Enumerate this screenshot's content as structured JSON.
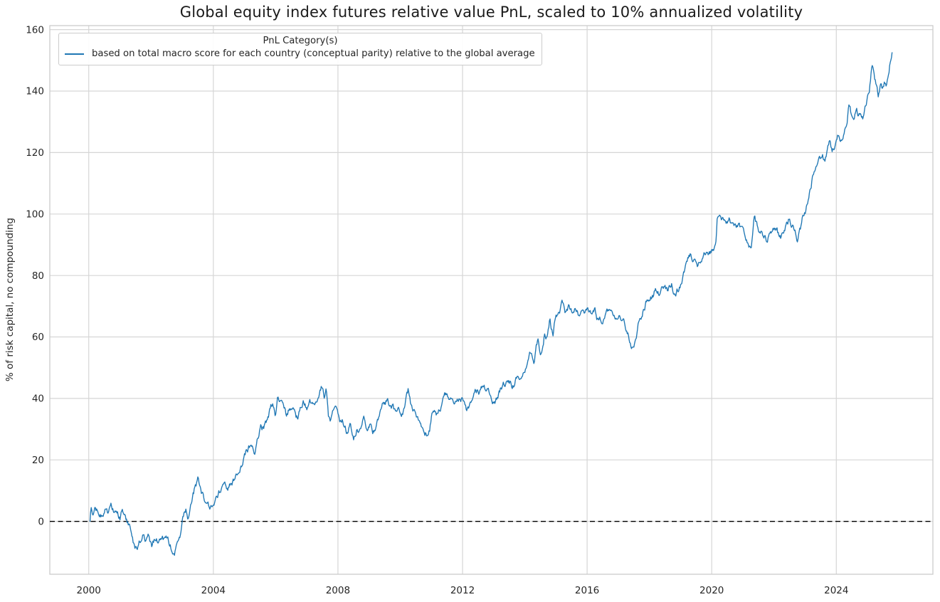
{
  "chart_data": {
    "type": "line",
    "title": "Global equity index futures relative value PnL, scaled to 10% annualized volatility",
    "xlabel": "",
    "ylabel": "% of risk capital, no compounding",
    "xlim": [
      1998.75,
      2027.1
    ],
    "ylim": [
      -17.2,
      161.3
    ],
    "x_ticks": [
      2000,
      2004,
      2008,
      2012,
      2016,
      2020,
      2024
    ],
    "y_ticks": [
      0,
      20,
      40,
      60,
      80,
      100,
      120,
      140,
      160
    ],
    "grid": true,
    "grid_color": "#d6d6d6",
    "axes_edge_color": "#cbcbcb",
    "zero_line": {
      "y": 0,
      "style": "dashed",
      "color": "#000000"
    },
    "legend": {
      "title": "PnL Category(s)",
      "position": "upper-left-inside",
      "entries": [
        {
          "label": "based on total macro score for each country (conceptual parity) relative to the global average",
          "color": "#1f77b4"
        }
      ]
    },
    "noise": {
      "seed": 7,
      "amplitude": 1.0,
      "persistence": 0.85,
      "clamp": 2.3,
      "step_years": 0.01923
    },
    "series": [
      {
        "name": "based on total macro score for each country (conceptual parity) relative to the global average",
        "color": "#1f77b4",
        "line_width": 1.35,
        "points": [
          [
            2000.04,
            0.0
          ],
          [
            2000.07,
            4.3
          ],
          [
            2000.13,
            2.6
          ],
          [
            2000.2,
            3.6
          ],
          [
            2000.28,
            3.1
          ],
          [
            2000.36,
            3.9
          ],
          [
            2000.45,
            2.9
          ],
          [
            2000.54,
            3.8
          ],
          [
            2000.63,
            3.2
          ],
          [
            2000.72,
            3.9
          ],
          [
            2000.82,
            3.4
          ],
          [
            2000.9,
            2.4
          ],
          [
            2001.0,
            0.6
          ],
          [
            2001.08,
            2.6
          ],
          [
            2001.16,
            1.4
          ],
          [
            2001.3,
            -1.8
          ],
          [
            2001.42,
            -6.8
          ],
          [
            2001.54,
            -8.6
          ],
          [
            2001.64,
            -6.0
          ],
          [
            2001.74,
            -4.6
          ],
          [
            2001.84,
            -6.9
          ],
          [
            2001.94,
            -5.4
          ],
          [
            2002.04,
            -7.8
          ],
          [
            2002.14,
            -5.8
          ],
          [
            2002.24,
            -7.2
          ],
          [
            2002.34,
            -4.9
          ],
          [
            2002.44,
            -6.3
          ],
          [
            2002.54,
            -5.3
          ],
          [
            2002.64,
            -7.6
          ],
          [
            2002.76,
            -9.2
          ],
          [
            2002.86,
            -6.6
          ],
          [
            2002.96,
            -3.9
          ],
          [
            2003.04,
            0.3
          ],
          [
            2003.12,
            3.4
          ],
          [
            2003.2,
            1.1
          ],
          [
            2003.3,
            5.4
          ],
          [
            2003.42,
            11.0
          ],
          [
            2003.5,
            12.8
          ],
          [
            2003.58,
            9.8
          ],
          [
            2003.68,
            6.9
          ],
          [
            2003.8,
            4.6
          ],
          [
            2003.92,
            3.4
          ],
          [
            2004.02,
            2.9
          ],
          [
            2004.1,
            6.4
          ],
          [
            2004.2,
            9.0
          ],
          [
            2004.33,
            10.8
          ],
          [
            2004.45,
            9.9
          ],
          [
            2004.56,
            11.9
          ],
          [
            2004.68,
            13.4
          ],
          [
            2004.78,
            15.0
          ],
          [
            2004.9,
            17.4
          ],
          [
            2005.0,
            20.8
          ],
          [
            2005.05,
            22.0
          ],
          [
            2005.15,
            23.5
          ],
          [
            2005.25,
            25.2
          ],
          [
            2005.35,
            23.8
          ],
          [
            2005.45,
            27.0
          ],
          [
            2005.53,
            31.5
          ],
          [
            2005.62,
            30.0
          ],
          [
            2005.72,
            33.0
          ],
          [
            2005.8,
            35.4
          ],
          [
            2005.9,
            37.7
          ],
          [
            2005.98,
            34.2
          ],
          [
            2006.07,
            39.6
          ],
          [
            2006.15,
            37.0
          ],
          [
            2006.25,
            38.5
          ],
          [
            2006.35,
            34.8
          ],
          [
            2006.45,
            37.5
          ],
          [
            2006.55,
            36.0
          ],
          [
            2006.68,
            33.6
          ],
          [
            2006.8,
            36.5
          ],
          [
            2006.9,
            38.0
          ],
          [
            2007.0,
            37.0
          ],
          [
            2007.1,
            39.5
          ],
          [
            2007.22,
            38.5
          ],
          [
            2007.32,
            41.0
          ],
          [
            2007.42,
            43.5
          ],
          [
            2007.5,
            45.0
          ],
          [
            2007.56,
            42.3
          ],
          [
            2007.63,
            43.8
          ],
          [
            2007.7,
            35.0
          ],
          [
            2007.78,
            33.8
          ],
          [
            2007.88,
            36.3
          ],
          [
            2007.96,
            34.8
          ],
          [
            2008.06,
            31.8
          ],
          [
            2008.16,
            33.0
          ],
          [
            2008.28,
            29.8
          ],
          [
            2008.38,
            31.3
          ],
          [
            2008.5,
            27.4
          ],
          [
            2008.6,
            30.3
          ],
          [
            2008.72,
            28.8
          ],
          [
            2008.82,
            32.3
          ],
          [
            2008.92,
            30.3
          ],
          [
            2009.02,
            31.8
          ],
          [
            2009.12,
            29.8
          ],
          [
            2009.22,
            31.3
          ],
          [
            2009.32,
            33.4
          ],
          [
            2009.45,
            37.4
          ],
          [
            2009.55,
            39.2
          ],
          [
            2009.65,
            37.8
          ],
          [
            2009.75,
            36.8
          ],
          [
            2009.85,
            34.2
          ],
          [
            2009.95,
            35.4
          ],
          [
            2010.05,
            35.9
          ],
          [
            2010.15,
            37.2
          ],
          [
            2010.25,
            41.8
          ],
          [
            2010.33,
            37.4
          ],
          [
            2010.42,
            34.6
          ],
          [
            2010.52,
            32.8
          ],
          [
            2010.62,
            31.4
          ],
          [
            2010.72,
            30.4
          ],
          [
            2010.84,
            29.6
          ],
          [
            2010.94,
            31.0
          ],
          [
            2011.04,
            36.3
          ],
          [
            2011.12,
            37.7
          ],
          [
            2011.2,
            35.4
          ],
          [
            2011.32,
            38.4
          ],
          [
            2011.44,
            40.8
          ],
          [
            2011.58,
            41.2
          ],
          [
            2011.72,
            40.4
          ],
          [
            2011.86,
            41.3
          ],
          [
            2012.0,
            40.8
          ],
          [
            2012.14,
            37.2
          ],
          [
            2012.3,
            39.4
          ],
          [
            2012.44,
            41.2
          ],
          [
            2012.56,
            42.0
          ],
          [
            2012.66,
            43.5
          ],
          [
            2012.78,
            42.0
          ],
          [
            2012.9,
            41.6
          ],
          [
            2013.04,
            39.3
          ],
          [
            2013.2,
            43.0
          ],
          [
            2013.34,
            44.4
          ],
          [
            2013.48,
            45.4
          ],
          [
            2013.6,
            44.0
          ],
          [
            2013.72,
            46.4
          ],
          [
            2013.82,
            45.0
          ],
          [
            2013.92,
            47.4
          ],
          [
            2014.02,
            50.0
          ],
          [
            2014.14,
            55.0
          ],
          [
            2014.22,
            56.6
          ],
          [
            2014.3,
            53.2
          ],
          [
            2014.42,
            59.7
          ],
          [
            2014.52,
            55.2
          ],
          [
            2014.64,
            62.4
          ],
          [
            2014.72,
            60.0
          ],
          [
            2014.8,
            65.4
          ],
          [
            2014.9,
            60.8
          ],
          [
            2015.0,
            67.7
          ],
          [
            2015.1,
            69.4
          ],
          [
            2015.2,
            71.0
          ],
          [
            2015.3,
            68.4
          ],
          [
            2015.42,
            70.0
          ],
          [
            2015.52,
            68.0
          ],
          [
            2015.62,
            69.4
          ],
          [
            2015.72,
            67.4
          ],
          [
            2015.84,
            69.0
          ],
          [
            2015.94,
            68.4
          ],
          [
            2016.04,
            68.8
          ],
          [
            2016.14,
            66.9
          ],
          [
            2016.24,
            67.9
          ],
          [
            2016.36,
            64.4
          ],
          [
            2016.5,
            66.4
          ],
          [
            2016.62,
            67.5
          ],
          [
            2016.76,
            68.4
          ],
          [
            2016.9,
            67.0
          ],
          [
            2017.0,
            68.4
          ],
          [
            2017.12,
            67.4
          ],
          [
            2017.22,
            65.4
          ],
          [
            2017.36,
            60.0
          ],
          [
            2017.5,
            56.3
          ],
          [
            2017.64,
            64.4
          ],
          [
            2017.78,
            67.9
          ],
          [
            2017.9,
            70.8
          ],
          [
            2018.02,
            72.4
          ],
          [
            2018.12,
            74.0
          ],
          [
            2018.24,
            76.0
          ],
          [
            2018.34,
            74.4
          ],
          [
            2018.46,
            76.4
          ],
          [
            2018.6,
            74.9
          ],
          [
            2018.72,
            76.8
          ],
          [
            2018.82,
            74.0
          ],
          [
            2018.92,
            75.4
          ],
          [
            2019.02,
            77.4
          ],
          [
            2019.12,
            80.0
          ],
          [
            2019.22,
            83.4
          ],
          [
            2019.32,
            86.8
          ],
          [
            2019.42,
            84.4
          ],
          [
            2019.54,
            82.3
          ],
          [
            2019.66,
            85.4
          ],
          [
            2019.76,
            87.0
          ],
          [
            2019.86,
            86.0
          ],
          [
            2019.96,
            87.4
          ],
          [
            2020.06,
            88.4
          ],
          [
            2020.14,
            89.4
          ],
          [
            2020.18,
            97.4
          ],
          [
            2020.3,
            98.0
          ],
          [
            2020.44,
            97.2
          ],
          [
            2020.58,
            97.8
          ],
          [
            2020.7,
            95.4
          ],
          [
            2020.8,
            94.4
          ],
          [
            2020.9,
            94.8
          ],
          [
            2021.0,
            93.4
          ],
          [
            2021.1,
            92.4
          ],
          [
            2021.18,
            91.4
          ],
          [
            2021.27,
            89.0
          ],
          [
            2021.37,
            99.2
          ],
          [
            2021.48,
            94.3
          ],
          [
            2021.6,
            93.0
          ],
          [
            2021.7,
            92.0
          ],
          [
            2021.78,
            91.3
          ],
          [
            2021.9,
            94.0
          ],
          [
            2021.98,
            95.4
          ],
          [
            2022.1,
            93.4
          ],
          [
            2022.2,
            91.6
          ],
          [
            2022.35,
            94.4
          ],
          [
            2022.5,
            98.8
          ],
          [
            2022.6,
            96.4
          ],
          [
            2022.68,
            94.0
          ],
          [
            2022.76,
            92.0
          ],
          [
            2022.86,
            95.0
          ],
          [
            2022.95,
            99.0
          ],
          [
            2023.02,
            100.4
          ],
          [
            2023.1,
            104.4
          ],
          [
            2023.18,
            108.0
          ],
          [
            2023.25,
            112.4
          ],
          [
            2023.32,
            115.0
          ],
          [
            2023.4,
            117.4
          ],
          [
            2023.45,
            120.4
          ],
          [
            2023.5,
            118.4
          ],
          [
            2023.56,
            121.0
          ],
          [
            2023.62,
            118.0
          ],
          [
            2023.7,
            120.0
          ],
          [
            2023.78,
            122.4
          ],
          [
            2023.86,
            119.4
          ],
          [
            2023.95,
            121.4
          ],
          [
            2024.02,
            123.4
          ],
          [
            2024.08,
            125.0
          ],
          [
            2024.14,
            122.8
          ],
          [
            2024.22,
            124.0
          ],
          [
            2024.28,
            127.4
          ],
          [
            2024.34,
            130.2
          ],
          [
            2024.4,
            136.0
          ],
          [
            2024.47,
            132.4
          ],
          [
            2024.53,
            129.0
          ],
          [
            2024.57,
            128.2
          ],
          [
            2024.64,
            133.3
          ],
          [
            2024.71,
            131.4
          ],
          [
            2024.78,
            133.4
          ],
          [
            2024.86,
            132.0
          ],
          [
            2024.94,
            134.4
          ],
          [
            2025.0,
            136.4
          ],
          [
            2025.06,
            139.4
          ],
          [
            2025.11,
            144.4
          ],
          [
            2025.16,
            148.4
          ],
          [
            2025.22,
            143.4
          ],
          [
            2025.29,
            141.4
          ],
          [
            2025.35,
            138.3
          ],
          [
            2025.42,
            143.3
          ],
          [
            2025.48,
            141.4
          ],
          [
            2025.55,
            144.0
          ],
          [
            2025.6,
            142.4
          ],
          [
            2025.68,
            146.0
          ],
          [
            2025.74,
            151.4
          ],
          [
            2025.79,
            152.5
          ]
        ]
      }
    ]
  }
}
